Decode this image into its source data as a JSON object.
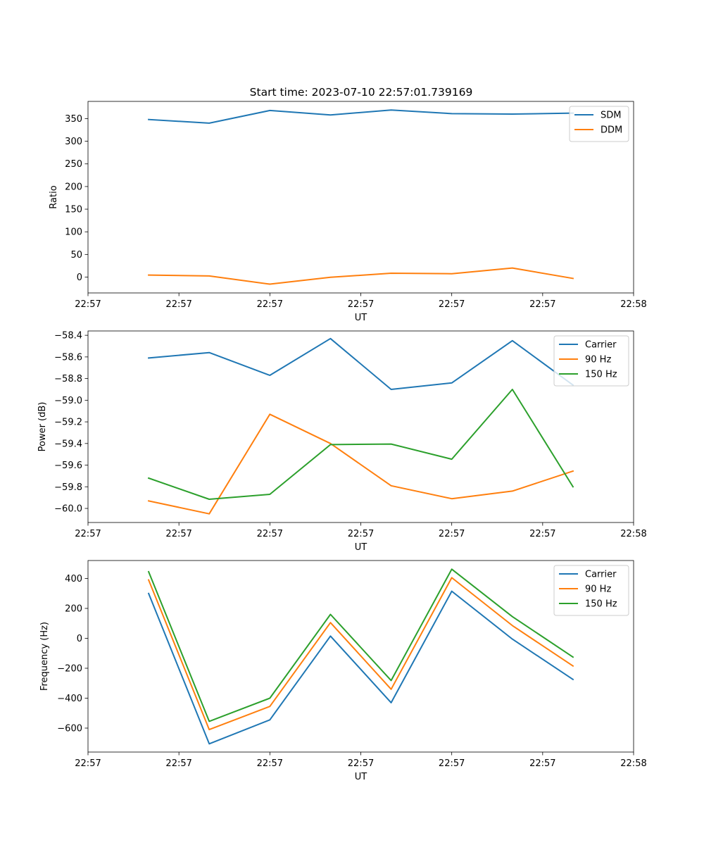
{
  "figure_title": "Start time: 2023-07-10 22:57:01.739169",
  "colors": {
    "blue": "#1f77b4",
    "orange": "#ff7f0e",
    "green": "#2ca02c"
  },
  "chart_data": [
    {
      "type": "line",
      "title": "Start time: 2023-07-10 22:57:01.739169",
      "xlabel": "UT",
      "ylabel": "Ratio",
      "x": [
        1,
        2,
        3,
        4,
        5,
        6,
        7,
        8
      ],
      "xlim": [
        0,
        9
      ],
      "ylim": [
        -35,
        388
      ],
      "xticks": {
        "positions": [
          0,
          1.5,
          3,
          4.5,
          6,
          7.5,
          9
        ],
        "labels": [
          "22:57",
          "22:57",
          "22:57",
          "22:57",
          "22:57",
          "22:57",
          "22:58"
        ]
      },
      "yticks": {
        "values": [
          0,
          50,
          100,
          150,
          200,
          250,
          300,
          350
        ],
        "labels": [
          "0",
          "50",
          "100",
          "150",
          "200",
          "250",
          "300",
          "350"
        ]
      },
      "legend": "top-right",
      "series": [
        {
          "name": "SDM",
          "color": "#1f77b4",
          "values": [
            348,
            340,
            368,
            358,
            369,
            361,
            360,
            362
          ]
        },
        {
          "name": "DDM",
          "color": "#ff7f0e",
          "values": [
            4.5,
            2.5,
            -15.5,
            -0.5,
            8.5,
            7.5,
            20,
            -3
          ]
        }
      ]
    },
    {
      "type": "line",
      "title": "",
      "xlabel": "UT",
      "ylabel": "Power (dB)",
      "x": [
        1,
        2,
        3,
        4,
        5,
        6,
        7,
        8
      ],
      "xlim": [
        0,
        9
      ],
      "ylim": [
        -60.13,
        -58.36
      ],
      "xticks": {
        "positions": [
          0,
          1.5,
          3,
          4.5,
          6,
          7.5,
          9
        ],
        "labels": [
          "22:57",
          "22:57",
          "22:57",
          "22:57",
          "22:57",
          "22:57",
          "22:58"
        ]
      },
      "yticks": {
        "values": [
          -60.0,
          -59.8,
          -59.6,
          -59.4,
          -59.2,
          -59.0,
          -58.8,
          -58.6,
          -58.4
        ],
        "labels": [
          "−60.0",
          "−59.8",
          "−59.6",
          "−59.4",
          "−59.2",
          "−59.0",
          "−58.8",
          "−58.6",
          "−58.4"
        ]
      },
      "legend": "top-right",
      "series": [
        {
          "name": "Carrier",
          "color": "#1f77b4",
          "values": [
            -58.61,
            -58.56,
            -58.77,
            -58.43,
            -58.9,
            -58.84,
            -58.45,
            -58.86
          ]
        },
        {
          "name": "90 Hz",
          "color": "#ff7f0e",
          "values": [
            -59.93,
            -60.05,
            -59.13,
            -59.4,
            -59.79,
            -59.91,
            -59.84,
            -59.655
          ]
        },
        {
          "name": "150 Hz",
          "color": "#2ca02c",
          "values": [
            -59.72,
            -59.915,
            -59.87,
            -59.41,
            -59.405,
            -59.545,
            -58.9,
            -59.8
          ]
        }
      ]
    },
    {
      "type": "line",
      "title": "",
      "xlabel": "UT",
      "ylabel": "Frequency (Hz)",
      "x": [
        1,
        2,
        3,
        4,
        5,
        6,
        7,
        8
      ],
      "xlim": [
        0,
        9
      ],
      "ylim": [
        -760,
        520
      ],
      "xticks": {
        "positions": [
          0,
          1.5,
          3,
          4.5,
          6,
          7.5,
          9
        ],
        "labels": [
          "22:57",
          "22:57",
          "22:57",
          "22:57",
          "22:57",
          "22:57",
          "22:58"
        ]
      },
      "yticks": {
        "values": [
          -600,
          -400,
          -200,
          0,
          200,
          400
        ],
        "labels": [
          "−600",
          "−400",
          "−200",
          "0",
          "200",
          "400"
        ]
      },
      "legend": "top-right",
      "series": [
        {
          "name": "Carrier",
          "color": "#1f77b4",
          "values": [
            300,
            -705,
            -545,
            15,
            -430,
            315,
            -5,
            -275
          ]
        },
        {
          "name": "90 Hz",
          "color": "#ff7f0e",
          "values": [
            390,
            -610,
            -455,
            105,
            -340,
            405,
            85,
            -185
          ]
        },
        {
          "name": "150 Hz",
          "color": "#2ca02c",
          "values": [
            445,
            -555,
            -400,
            160,
            -282,
            462,
            145,
            -125
          ]
        }
      ]
    }
  ]
}
